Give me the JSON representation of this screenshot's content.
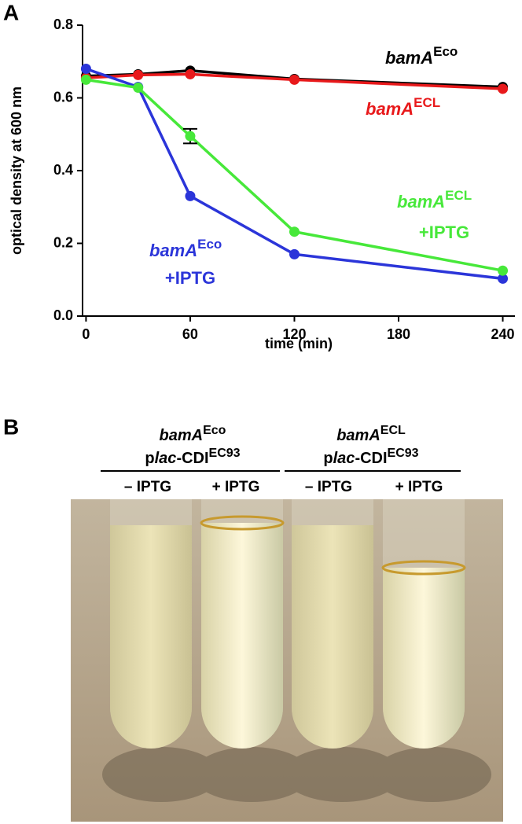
{
  "panel_labels": [
    "A",
    "B"
  ],
  "chart_data": {
    "type": "line",
    "xlabel": "time (min)",
    "ylabel": "optical density at 600 nm",
    "xlim": [
      -2,
      247
    ],
    "ylim": [
      0,
      0.8
    ],
    "xticks": [
      0,
      60,
      120,
      180,
      240
    ],
    "yticks": [
      {
        "value": 0,
        "label": "0.0"
      },
      0.2,
      0.4,
      0.6,
      0.8
    ],
    "x": [
      0,
      30,
      60,
      120,
      240
    ],
    "series": [
      {
        "name": "bamA",
        "name_sup": "Eco",
        "color": "#000000",
        "values": [
          0.66,
          0.665,
          0.675,
          0.652,
          0.63
        ]
      },
      {
        "name": "bamA",
        "name_sup": "ECL",
        "color": "#e8191b",
        "values": [
          0.655,
          0.663,
          0.665,
          0.65,
          0.625
        ]
      },
      {
        "name": "bamA",
        "name_sup": "Eco",
        "name_line2": "+IPTG",
        "color": "#2b35d9",
        "values": [
          0.68,
          0.63,
          0.33,
          0.17,
          0.103
        ]
      },
      {
        "name": "bamA",
        "name_sup": "ECL",
        "name_line2": "+IPTG",
        "color": "#47e83a",
        "values": [
          0.65,
          0.628,
          0.495,
          0.232,
          0.125
        ],
        "errors": [
          null,
          null,
          0.02,
          null,
          null
        ]
      }
    ]
  },
  "photo": {
    "groups": [
      {
        "strain": "bamA",
        "strain_sup": "Eco",
        "plasmid_prefix": "p",
        "plasmid_italic": "lac",
        "plasmid_rest": "-CDI",
        "plasmid_sup": "EC93"
      },
      {
        "strain": "bamA",
        "strain_sup": "ECL",
        "plasmid_prefix": "p",
        "plasmid_italic": "lac",
        "plasmid_rest": "-CDI",
        "plasmid_sup": "EC93"
      }
    ],
    "tube_labels": [
      "– IPTG",
      "+ IPTG",
      "– IPTG",
      "+ IPTG"
    ]
  }
}
